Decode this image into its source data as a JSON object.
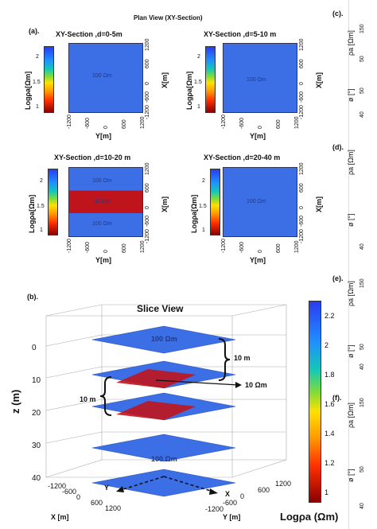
{
  "plan_title": "Plan View (XY-Section)",
  "panel_a": "(a).",
  "panel_b": "(b).",
  "panels_right": [
    "(c).",
    "(d).",
    "(e).",
    "(f)."
  ],
  "plan_maps": [
    {
      "title": "XY-Section ,d=0-5m",
      "label_top": "100 Ωm"
    },
    {
      "title": "XY-Section ,d=5-10 m",
      "label_top": "100 Ωm"
    },
    {
      "title": "XY-Section ,d=10-20 m",
      "label_top": "100 Ωm",
      "label_mid": "10 Ωm",
      "label_bot": "100 Ωm"
    },
    {
      "title": "XY-Section ,d=20-40 m",
      "label_top": "100 Ωm"
    }
  ],
  "plan_cbar_label": "Logρa[Ωm]",
  "plan_cbar_ticks": [
    "2",
    "1.5",
    "1"
  ],
  "plan_xlabel": "Y[m]",
  "plan_ylabel": "X[m]",
  "plan_xticks": [
    "-1200",
    "-600",
    "0",
    "600",
    "1200"
  ],
  "plan_yticks": [
    "1200",
    "600",
    "0",
    "-600",
    "-1200"
  ],
  "slice_title": "Slice View",
  "slice_zlabel": "z (m)",
  "slice_zticks": [
    "0",
    "10",
    "20",
    "30",
    "40"
  ],
  "slice_xlabel": "X [m]",
  "slice_ylabel": "Y [m]",
  "slice_xticks": [
    "-1200",
    "-600",
    "0",
    "600",
    "1200"
  ],
  "slice_yticks": [
    "-1200",
    "-600",
    "0",
    "600",
    "1200"
  ],
  "slice_labels": {
    "top": "100 Ωm",
    "bottom": "100 Ωm",
    "anomaly": "10 Ωm",
    "thick_upper": "10 m",
    "thick_left": "10 m",
    "axis_x": "X",
    "axis_y": "Y"
  },
  "slice_cbar_ticks": [
    "2.2",
    "2",
    "1.8",
    "1.6",
    "1.4",
    "1.2",
    "1"
  ],
  "slice_cbar_label": "Logρa (Ωm)",
  "right_ticks": {
    "c": [
      "150",
      "50",
      "50",
      "40"
    ],
    "d": [
      "40"
    ],
    "e": [
      "150",
      "50",
      "40"
    ],
    "f": [
      "150",
      "50",
      "40"
    ]
  },
  "right_labels": {
    "rho": "ρa [Ωm]",
    "phi": "ø [°]"
  },
  "colors": {
    "blue": "#3c6fe6",
    "red": "#c0141c",
    "outline": "#1e3a8a"
  }
}
